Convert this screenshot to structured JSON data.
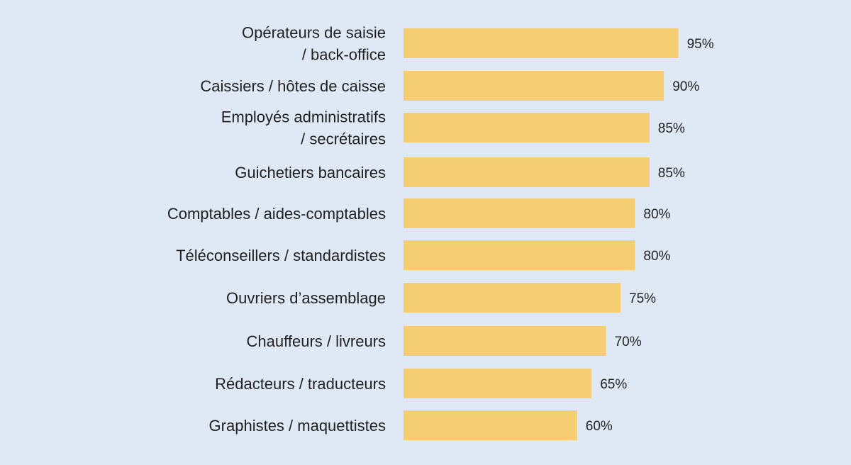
{
  "chart_data": {
    "type": "bar",
    "orientation": "horizontal",
    "categories": [
      "Opérateurs de saisie\n/ back-office",
      "Caissiers / hôtes de caisse",
      "Employés administratifs\n/ secrétaires",
      "Guichetiers bancaires",
      "Comptables / aides-comptables",
      "Téléconseillers / standardistes",
      "Ouvriers d’assemblage",
      "Chauffeurs / livreurs",
      "Rédacteurs / traducteurs",
      "Graphistes / maquettistes"
    ],
    "values": [
      95,
      90,
      85,
      85,
      80,
      80,
      75,
      70,
      65,
      60
    ],
    "value_labels": [
      "95%",
      "90%",
      "85%",
      "85%",
      "80%",
      "80%",
      "75%",
      "70%",
      "65%",
      "60%"
    ],
    "unit": "%",
    "grid": false,
    "legend": "none",
    "colors": {
      "bar": "#f5cd72",
      "background": "#dfe9f5",
      "text": "#1f1f1f"
    }
  }
}
